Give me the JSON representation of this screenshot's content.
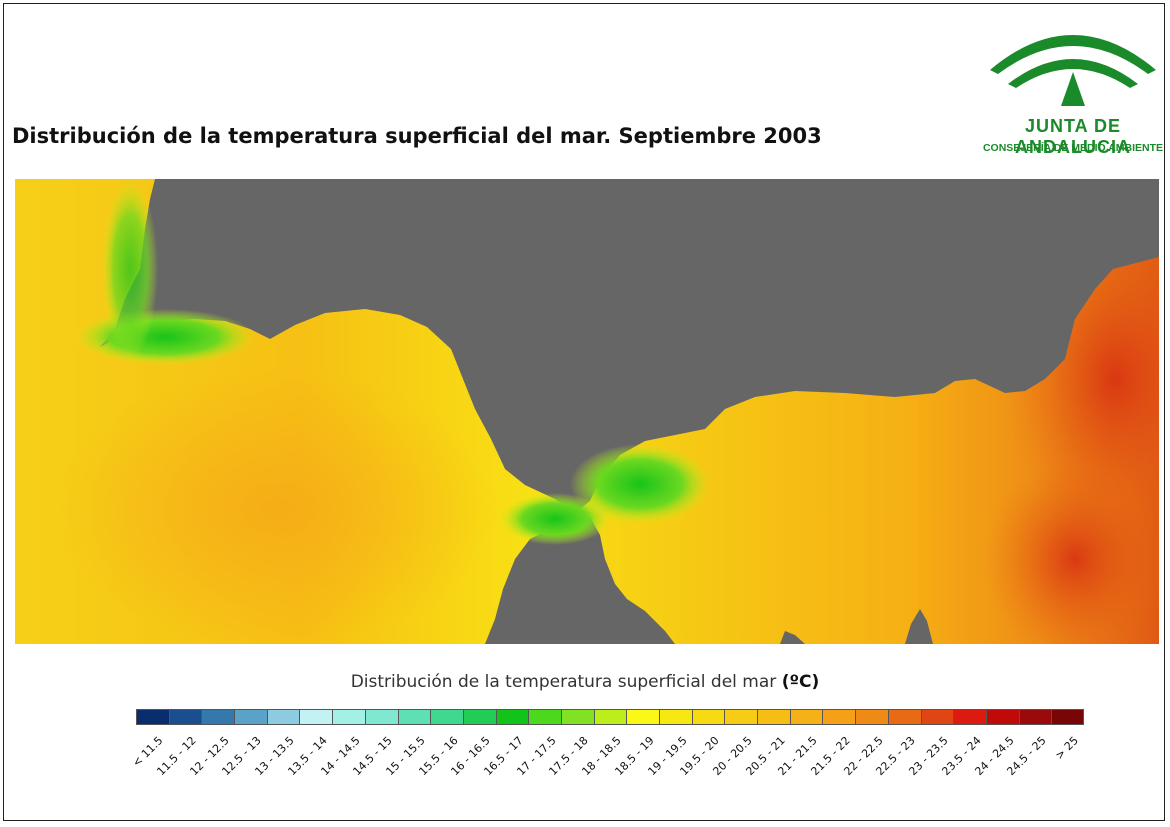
{
  "title": "Distribución de la temperatura superficial del mar. Septiembre 2003",
  "logo": {
    "name": "JUNTA DE ANDALUCIA",
    "department": "CONSEJERÍA DE MEDIO AMBIENTE"
  },
  "legend": {
    "title": "Distribución de la temperatura superficial del mar",
    "unit": "(ºC)",
    "classes": [
      {
        "label": "< 11.5",
        "color": "#0a2d6e"
      },
      {
        "label": "11.5 - 12",
        "color": "#1a4e8e"
      },
      {
        "label": "12 - 12.5",
        "color": "#3478ac"
      },
      {
        "label": "12.5 - 13",
        "color": "#5aa2c8"
      },
      {
        "label": "13 - 13.5",
        "color": "#8ccbe0"
      },
      {
        "label": "13.5 - 14",
        "color": "#c2f2f4"
      },
      {
        "label": "14 - 14.5",
        "color": "#a2f0e6"
      },
      {
        "label": "14.5 - 15",
        "color": "#80e8d0"
      },
      {
        "label": "15 - 15.5",
        "color": "#5ee0b4"
      },
      {
        "label": "15.5 - 16",
        "color": "#3ed890"
      },
      {
        "label": "16 - 16.5",
        "color": "#22cc56"
      },
      {
        "label": "16.5 - 17",
        "color": "#12c41a"
      },
      {
        "label": "17 - 17.5",
        "color": "#4cd81c"
      },
      {
        "label": "17.5 - 18",
        "color": "#80e222"
      },
      {
        "label": "18 - 18.5",
        "color": "#bcee1c"
      },
      {
        "label": "18.5 - 19",
        "color": "#faf814"
      },
      {
        "label": "19 - 19.5",
        "color": "#f8e812"
      },
      {
        "label": "19.5 - 20",
        "color": "#f6da12"
      },
      {
        "label": "20 - 20.5",
        "color": "#f6cc14"
      },
      {
        "label": "20.5 - 21",
        "color": "#f6be14"
      },
      {
        "label": "21 - 21.5",
        "color": "#f6b018"
      },
      {
        "label": "21.5 - 22",
        "color": "#f6a018"
      },
      {
        "label": "22 - 22.5",
        "color": "#f08a16"
      },
      {
        "label": "22.5 - 23",
        "color": "#e86a14"
      },
      {
        "label": "23 - 23.5",
        "color": "#e04614"
      },
      {
        "label": "23.5 - 24",
        "color": "#dc1a10"
      },
      {
        "label": "24 - 24.5",
        "color": "#c00a0a"
      },
      {
        "label": "24.5 - 25",
        "color": "#9a0a0a"
      },
      {
        "label": "> 25",
        "color": "#780606"
      }
    ]
  },
  "colors": {
    "land": "#666666",
    "logo_green": "#1a8a2a"
  }
}
